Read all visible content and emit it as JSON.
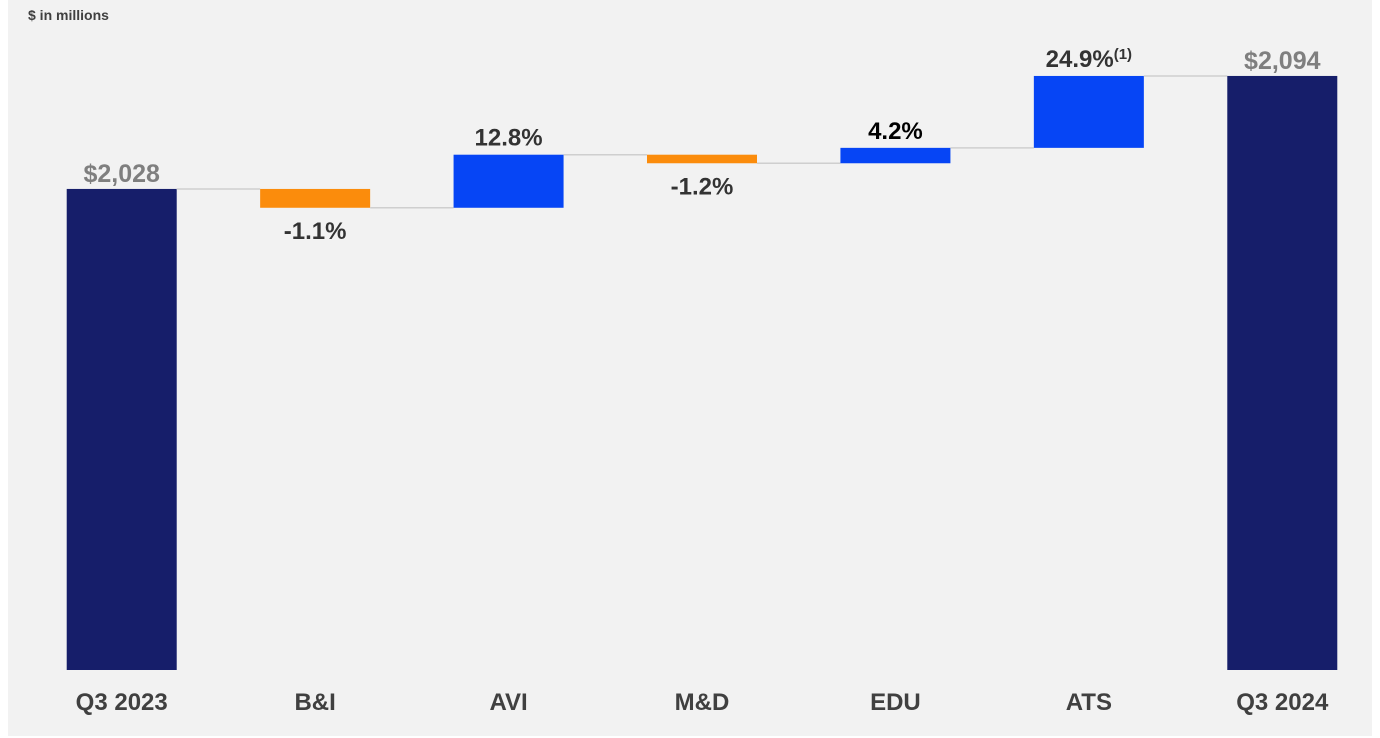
{
  "chart_data": {
    "type": "waterfall",
    "subtitle": "$ in millions",
    "categories": [
      "Q3 2023",
      "B&I",
      "AVI",
      "M&D",
      "EDU",
      "ATS",
      "Q3 2024"
    ],
    "values": [
      2028,
      -11,
      31,
      -5,
      9,
      42,
      2094
    ],
    "total_labels": [
      "$2,028",
      "$2,094"
    ],
    "change_labels": [
      "-1.1%",
      "12.8%",
      "-1.2%",
      "4.2%",
      "24.9%"
    ],
    "change_label_note": "(1)",
    "colors": {
      "total": "#161e6a",
      "increase": "#0645f5",
      "decrease": "#fb8c0c"
    },
    "ylim": [
      1747,
      2115
    ]
  }
}
